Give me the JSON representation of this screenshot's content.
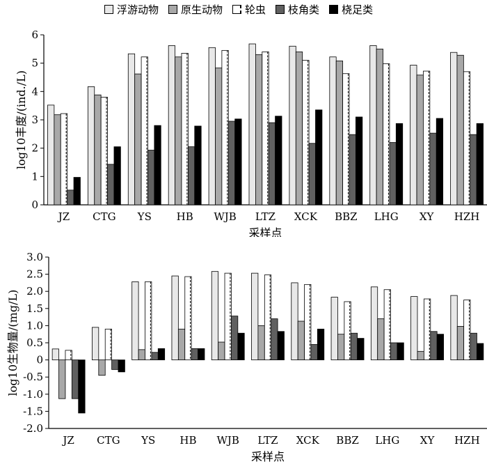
{
  "legend": [
    {
      "name": "浮游动物",
      "color": "#e8e8e8"
    },
    {
      "name": "原生动物",
      "color": "#a8a8a8"
    },
    {
      "name": "轮虫",
      "color": "#ffffff",
      "pattern": "dashed"
    },
    {
      "name": "枝角类",
      "color": "#606060"
    },
    {
      "name": "桡足类",
      "color": "#000000"
    }
  ],
  "chart_data": [
    {
      "type": "bar",
      "categories": [
        "JZ",
        "CTG",
        "YS",
        "HB",
        "WJB",
        "LTZ",
        "XCK",
        "BBZ",
        "LHG",
        "XY",
        "HZH"
      ],
      "xlabel": "采样点",
      "ylabel": "log10丰度/(ind./L)",
      "ylim": [
        0,
        6
      ],
      "yticks": [
        "0",
        "1",
        "2",
        "3",
        "4",
        "5",
        "6"
      ],
      "series": [
        {
          "name": "浮游动物",
          "values": [
            3.52,
            4.17,
            5.33,
            5.62,
            5.55,
            5.68,
            5.6,
            5.22,
            5.62,
            4.93,
            5.38
          ]
        },
        {
          "name": "原生动物",
          "values": [
            3.18,
            3.88,
            4.62,
            5.22,
            4.83,
            5.3,
            5.4,
            5.08,
            5.5,
            4.58,
            5.28
          ]
        },
        {
          "name": "轮虫",
          "values": [
            3.22,
            3.8,
            5.22,
            5.35,
            5.45,
            5.4,
            5.1,
            4.63,
            4.98,
            4.72,
            4.7
          ]
        },
        {
          "name": "枝角类",
          "values": [
            0.52,
            1.43,
            1.93,
            2.05,
            2.95,
            2.9,
            2.17,
            2.48,
            2.2,
            2.53,
            2.48
          ]
        },
        {
          "name": "桡足类",
          "values": [
            0.97,
            2.05,
            2.8,
            2.78,
            3.03,
            3.13,
            3.35,
            3.1,
            2.87,
            3.05,
            2.87
          ]
        }
      ]
    },
    {
      "type": "bar",
      "categories": [
        "JZ",
        "CTG",
        "YS",
        "HB",
        "WJB",
        "LTZ",
        "XCK",
        "BBZ",
        "LHG",
        "XY",
        "HZH"
      ],
      "xlabel": "采样点",
      "ylabel": "log10生物量/(mg/L)",
      "ylim": [
        -2,
        3
      ],
      "yticks": [
        "-2.0",
        "-1.5",
        "-1.0",
        "-0.5",
        "0",
        "0.5",
        "1.0",
        "1.5",
        "2.0",
        "2.5",
        "3.0"
      ],
      "series": [
        {
          "name": "浮游动物",
          "values": [
            0.32,
            0.95,
            2.28,
            2.45,
            2.58,
            2.53,
            2.25,
            1.83,
            2.13,
            1.85,
            1.88
          ]
        },
        {
          "name": "原生动物",
          "values": [
            -1.13,
            -0.45,
            0.3,
            0.9,
            0.52,
            1.0,
            1.13,
            0.75,
            1.2,
            0.25,
            0.98
          ]
        },
        {
          "name": "轮虫",
          "values": [
            0.28,
            0.9,
            2.28,
            2.43,
            2.53,
            2.48,
            2.2,
            1.7,
            2.05,
            1.78,
            1.75
          ]
        },
        {
          "name": "枝角类",
          "values": [
            -1.13,
            -0.28,
            0.22,
            0.33,
            1.28,
            1.2,
            0.45,
            0.78,
            0.5,
            0.83,
            0.78
          ]
        },
        {
          "name": "桡足类",
          "values": [
            -1.55,
            -0.35,
            0.33,
            0.33,
            0.78,
            0.83,
            0.9,
            0.63,
            0.5,
            0.75,
            0.48
          ]
        }
      ]
    }
  ]
}
